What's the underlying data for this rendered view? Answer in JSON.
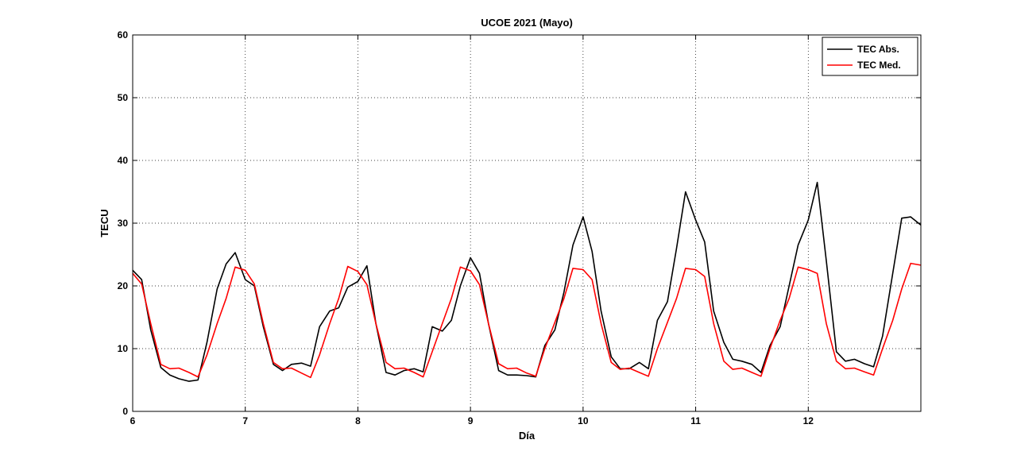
{
  "chart_data": {
    "type": "line",
    "title": "UCOE 2021 (Mayo)",
    "xlabel": "Día",
    "ylabel": "TECU",
    "xlim": [
      6,
      13
    ],
    "ylim": [
      0,
      60
    ],
    "xticks": [
      6,
      7,
      8,
      9,
      10,
      11,
      12
    ],
    "yticks": [
      0,
      10,
      20,
      30,
      40,
      50,
      60
    ],
    "grid": "dotted",
    "legend_position": "top-right",
    "series": [
      {
        "name": "TEC Abs.",
        "color": "#000000",
        "x": [
          6.0,
          6.08,
          6.16,
          6.25,
          6.33,
          6.41,
          6.5,
          6.58,
          6.66,
          6.75,
          6.83,
          6.91,
          7.0,
          7.08,
          7.16,
          7.25,
          7.33,
          7.41,
          7.5,
          7.58,
          7.66,
          7.75,
          7.83,
          7.91,
          8.0,
          8.08,
          8.16,
          8.25,
          8.33,
          8.41,
          8.5,
          8.58,
          8.66,
          8.75,
          8.83,
          8.91,
          9.0,
          9.08,
          9.16,
          9.25,
          9.33,
          9.41,
          9.5,
          9.58,
          9.66,
          9.75,
          9.83,
          9.91,
          10.0,
          10.08,
          10.16,
          10.25,
          10.33,
          10.41,
          10.5,
          10.58,
          10.66,
          10.75,
          10.83,
          10.91,
          11.0,
          11.08,
          11.16,
          11.25,
          11.33,
          11.41,
          11.5,
          11.58,
          11.66,
          11.75,
          11.83,
          11.91,
          12.0,
          12.08,
          12.16,
          12.25,
          12.33,
          12.41,
          12.5,
          12.58,
          12.66,
          12.75,
          12.83,
          12.91,
          13.0
        ],
        "y": [
          22.5,
          21,
          13,
          7,
          5.8,
          5.2,
          4.8,
          5,
          11,
          19.5,
          23.5,
          25.3,
          21,
          20,
          13.5,
          7.5,
          6.5,
          7.5,
          7.7,
          7.2,
          13.5,
          16,
          16.5,
          19.8,
          20.7,
          23.2,
          14,
          6.2,
          5.8,
          6.5,
          6.8,
          6.3,
          13.5,
          12.8,
          14.5,
          20,
          24.5,
          22,
          14,
          6.5,
          5.8,
          5.8,
          5.7,
          5.5,
          10.5,
          13,
          19,
          26.5,
          31,
          25.5,
          16,
          8.7,
          6.8,
          6.8,
          7.8,
          6.8,
          14.5,
          17.5,
          26,
          35,
          30.5,
          27,
          16,
          11,
          8.3,
          8,
          7.5,
          6.2,
          10.5,
          13.5,
          20,
          26.5,
          30.5,
          36.5,
          24,
          9.5,
          8,
          8.3,
          7.6,
          7.1,
          12,
          22,
          30.8,
          31,
          29.7
        ]
      },
      {
        "name": "TEC Med.",
        "color": "#ff0000",
        "x": [
          6.0,
          6.08,
          6.16,
          6.25,
          6.33,
          6.41,
          6.5,
          6.58,
          6.66,
          6.75,
          6.83,
          6.91,
          7.0,
          7.08,
          7.16,
          7.25,
          7.33,
          7.41,
          7.5,
          7.58,
          7.66,
          7.75,
          7.83,
          7.91,
          8.0,
          8.08,
          8.16,
          8.25,
          8.33,
          8.41,
          8.5,
          8.58,
          8.66,
          8.75,
          8.83,
          8.91,
          9.0,
          9.08,
          9.16,
          9.25,
          9.33,
          9.41,
          9.5,
          9.58,
          9.66,
          9.75,
          9.83,
          9.91,
          10.0,
          10.08,
          10.16,
          10.25,
          10.33,
          10.41,
          10.5,
          10.58,
          10.66,
          10.75,
          10.83,
          10.91,
          11.0,
          11.08,
          11.16,
          11.25,
          11.33,
          11.41,
          11.5,
          11.58,
          11.66,
          11.75,
          11.83,
          11.91,
          12.0,
          12.08,
          12.16,
          12.25,
          12.33,
          12.41,
          12.5,
          12.58,
          12.66,
          12.75,
          12.83,
          12.91,
          13.0
        ],
        "y": [
          22,
          20.3,
          14,
          7.5,
          6.8,
          6.9,
          6.2,
          5.5,
          9,
          14,
          18,
          23,
          22.5,
          20.3,
          14,
          7.8,
          6.8,
          6.9,
          6.1,
          5.4,
          9,
          14,
          18,
          23.1,
          22.3,
          20.2,
          14,
          7.8,
          6.8,
          6.9,
          6.2,
          5.5,
          9.5,
          14,
          18,
          23,
          22.4,
          20.2,
          14,
          7.6,
          6.8,
          6.9,
          6.1,
          5.6,
          10,
          14.2,
          18,
          22.8,
          22.6,
          21,
          14,
          7.8,
          6.7,
          6.9,
          6.2,
          5.6,
          10,
          14.2,
          18,
          22.8,
          22.6,
          21.5,
          14,
          8,
          6.7,
          6.9,
          6.2,
          5.6,
          10,
          14.5,
          18,
          23,
          22.6,
          22,
          14,
          8,
          6.8,
          6.9,
          6.3,
          5.8,
          10,
          14.5,
          19.5,
          23.6,
          23.3
        ]
      }
    ]
  }
}
